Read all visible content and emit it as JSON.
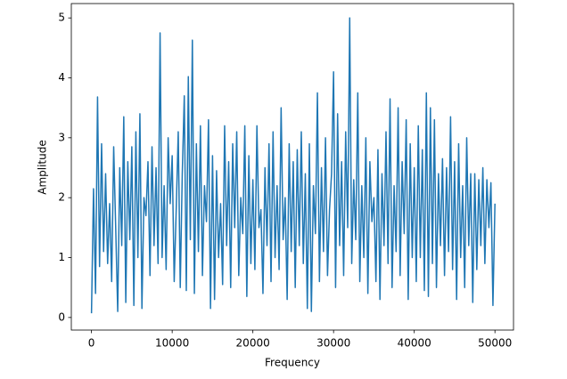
{
  "chart_data": {
    "type": "line",
    "xlabel": "Frequency",
    "ylabel": "Amplitude",
    "xlim": [
      -2500,
      52300
    ],
    "ylim": [
      -0.21,
      5.24
    ],
    "xticks": [
      0,
      10000,
      20000,
      30000,
      40000,
      50000
    ],
    "yticks": [
      0,
      1,
      2,
      3,
      4,
      5
    ],
    "series": [
      {
        "color": "#1f77b4",
        "x": [
          0,
          250,
          500,
          750,
          1000,
          1250,
          1500,
          1750,
          2000,
          2250,
          2500,
          2750,
          3000,
          3250,
          3500,
          3750,
          4000,
          4250,
          4500,
          4750,
          5000,
          5250,
          5500,
          5750,
          6000,
          6250,
          6500,
          6750,
          7000,
          7250,
          7500,
          7750,
          8000,
          8250,
          8500,
          8750,
          9000,
          9250,
          9500,
          9750,
          10000,
          10250,
          10500,
          10750,
          11000,
          11250,
          11500,
          11750,
          12000,
          12250,
          12500,
          12750,
          13000,
          13250,
          13500,
          13750,
          14000,
          14250,
          14500,
          14750,
          15000,
          15250,
          15500,
          15750,
          16000,
          16250,
          16500,
          16750,
          17000,
          17250,
          17500,
          17750,
          18000,
          18250,
          18500,
          18750,
          19000,
          19250,
          19500,
          19750,
          20000,
          20250,
          20500,
          20750,
          21000,
          21250,
          21500,
          21750,
          22000,
          22250,
          22500,
          22750,
          23000,
          23250,
          23500,
          23750,
          24000,
          24250,
          24500,
          24750,
          25000,
          25250,
          25500,
          25750,
          26000,
          26250,
          26500,
          26750,
          27000,
          27250,
          27500,
          27750,
          28000,
          28250,
          28500,
          28750,
          29000,
          29250,
          29500,
          29750,
          30000,
          30250,
          30500,
          30750,
          31000,
          31250,
          31500,
          31750,
          32000,
          32250,
          32500,
          32750,
          33000,
          33250,
          33500,
          33750,
          34000,
          34250,
          34500,
          34750,
          35000,
          35250,
          35500,
          35750,
          36000,
          36250,
          36500,
          36750,
          37000,
          37250,
          37500,
          37750,
          38000,
          38250,
          38500,
          38750,
          39000,
          39250,
          39500,
          39750,
          40000,
          40250,
          40500,
          40750,
          41000,
          41250,
          41500,
          41750,
          42000,
          42250,
          42500,
          42750,
          43000,
          43250,
          43500,
          43750,
          44000,
          44250,
          44500,
          44750,
          45000,
          45250,
          45500,
          45750,
          46000,
          46250,
          46500,
          46750,
          47000,
          47250,
          47500,
          47750,
          48000,
          48250,
          48500,
          48750,
          49000,
          49250,
          49500,
          49750,
          50000
        ],
        "values": [
          0.07,
          2.15,
          0.4,
          3.68,
          0.85,
          2.9,
          1.1,
          2.4,
          0.9,
          1.9,
          0.6,
          2.85,
          1.5,
          0.1,
          2.5,
          1.2,
          3.35,
          0.25,
          2.6,
          1.3,
          2.85,
          0.2,
          3.1,
          1.0,
          3.4,
          0.15,
          2.0,
          1.7,
          2.6,
          0.7,
          2.85,
          1.2,
          2.5,
          0.9,
          4.75,
          1.0,
          2.2,
          0.8,
          3.0,
          1.9,
          2.7,
          0.6,
          1.8,
          3.1,
          0.5,
          2.4,
          3.7,
          0.45,
          4.02,
          1.3,
          4.63,
          0.4,
          2.9,
          1.1,
          3.2,
          0.7,
          2.2,
          1.6,
          3.3,
          0.15,
          2.7,
          0.3,
          2.45,
          1.0,
          1.9,
          0.55,
          3.2,
          1.2,
          2.6,
          0.5,
          2.9,
          1.5,
          3.1,
          0.7,
          2.0,
          1.4,
          3.2,
          0.35,
          2.7,
          0.9,
          2.3,
          0.8,
          3.2,
          1.5,
          1.8,
          0.4,
          2.5,
          1.2,
          2.9,
          0.6,
          3.1,
          1.0,
          2.2,
          0.8,
          3.5,
          1.3,
          2.0,
          0.3,
          2.9,
          1.1,
          2.6,
          0.5,
          2.8,
          1.2,
          3.1,
          0.9,
          2.4,
          0.15,
          2.9,
          0.1,
          2.2,
          1.4,
          3.75,
          0.6,
          2.5,
          1.1,
          3.0,
          0.7,
          1.8,
          2.4,
          4.1,
          0.5,
          3.4,
          1.2,
          2.6,
          0.7,
          3.1,
          1.5,
          5.0,
          0.9,
          2.3,
          1.3,
          3.75,
          0.6,
          2.2,
          1.0,
          3.0,
          0.4,
          2.6,
          1.6,
          2.0,
          0.6,
          2.8,
          0.3,
          2.4,
          1.2,
          3.1,
          0.9,
          3.65,
          0.5,
          2.2,
          1.1,
          3.5,
          0.7,
          2.6,
          1.4,
          3.3,
          0.3,
          2.9,
          1.0,
          2.5,
          0.6,
          3.2,
          1.0,
          2.8,
          0.45,
          3.75,
          0.35,
          3.5,
          0.9,
          3.3,
          0.5,
          2.4,
          1.2,
          2.65,
          0.7,
          2.5,
          1.1,
          3.35,
          0.8,
          2.6,
          0.3,
          2.9,
          1.0,
          2.2,
          0.5,
          3.0,
          1.2,
          2.4,
          0.25,
          2.4,
          0.8,
          2.3,
          1.2,
          2.5,
          0.9,
          2.3,
          1.5,
          2.25,
          0.2,
          1.9
        ]
      }
    ]
  }
}
